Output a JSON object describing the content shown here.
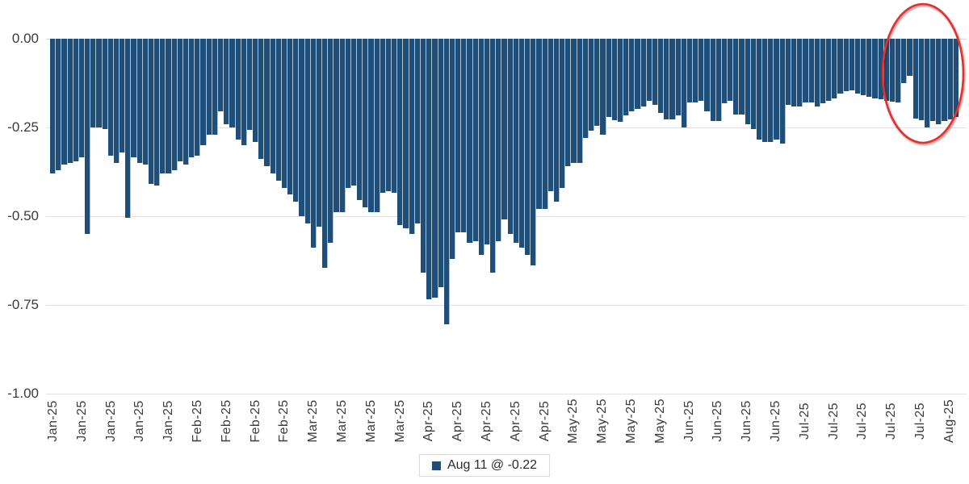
{
  "legend": {
    "label": "Aug 11 @ -0.22",
    "marker_color": "#1F4E79"
  },
  "annotation": {
    "shape": "ellipse",
    "stroke_color": "#E0312E",
    "highlights": "last bars of series"
  },
  "chart_data": {
    "type": "bar",
    "title": "",
    "xlabel": "",
    "ylabel": "",
    "ylim": [
      -1.0,
      0.0
    ],
    "grid": "horizontal",
    "legend_position": "bottom-center",
    "bar_color": "#1F4E79",
    "y_ticks": [
      {
        "label": "0.00",
        "value": 0.0
      },
      {
        "label": "-0.25",
        "value": -0.25
      },
      {
        "label": "-0.50",
        "value": -0.5
      },
      {
        "label": "-0.75",
        "value": -0.75
      },
      {
        "label": "-1.00",
        "value": -1.0
      }
    ],
    "x_tick_labels": [
      "Jan-25",
      "Jan-25",
      "Jan-25",
      "Jan-25",
      "Jan-25",
      "Feb-25",
      "Feb-25",
      "Feb-25",
      "Feb-25",
      "Mar-25",
      "Mar-25",
      "Mar-25",
      "Mar-25",
      "Apr-25",
      "Apr-25",
      "Apr-25",
      "Apr-25",
      "Apr-25",
      "May-25",
      "May-25",
      "May-25",
      "May-25",
      "Jun-25",
      "Jun-25",
      "Jun-25",
      "Jun-25",
      "Jul-25",
      "Jul-25",
      "Jul-25",
      "Jul-25",
      "Jul-25",
      "Aug-25"
    ],
    "x_tick_every_n_bars": 5,
    "series": [
      {
        "name": "Aug 11 @ -0.22",
        "color": "#1F4E79",
        "values": [
          -0.38,
          -0.37,
          -0.355,
          -0.35,
          -0.345,
          -0.335,
          -0.55,
          -0.25,
          -0.25,
          -0.255,
          -0.33,
          -0.35,
          -0.32,
          -0.505,
          -0.335,
          -0.35,
          -0.355,
          -0.41,
          -0.415,
          -0.38,
          -0.38,
          -0.37,
          -0.345,
          -0.355,
          -0.335,
          -0.33,
          -0.3,
          -0.27,
          -0.27,
          -0.205,
          -0.24,
          -0.25,
          -0.285,
          -0.3,
          -0.258,
          -0.29,
          -0.34,
          -0.36,
          -0.38,
          -0.4,
          -0.42,
          -0.44,
          -0.46,
          -0.5,
          -0.52,
          -0.59,
          -0.53,
          -0.645,
          -0.575,
          -0.49,
          -0.49,
          -0.42,
          -0.415,
          -0.455,
          -0.475,
          -0.49,
          -0.49,
          -0.435,
          -0.43,
          -0.435,
          -0.525,
          -0.535,
          -0.55,
          -0.52,
          -0.66,
          -0.735,
          -0.73,
          -0.7,
          -0.805,
          -0.62,
          -0.545,
          -0.545,
          -0.575,
          -0.57,
          -0.61,
          -0.58,
          -0.66,
          -0.57,
          -0.51,
          -0.55,
          -0.575,
          -0.59,
          -0.61,
          -0.64,
          -0.48,
          -0.48,
          -0.43,
          -0.46,
          -0.42,
          -0.36,
          -0.35,
          -0.35,
          -0.28,
          -0.26,
          -0.245,
          -0.27,
          -0.22,
          -0.23,
          -0.235,
          -0.215,
          -0.205,
          -0.198,
          -0.19,
          -0.175,
          -0.186,
          -0.21,
          -0.228,
          -0.228,
          -0.217,
          -0.25,
          -0.18,
          -0.18,
          -0.175,
          -0.205,
          -0.232,
          -0.232,
          -0.182,
          -0.175,
          -0.213,
          -0.213,
          -0.24,
          -0.255,
          -0.285,
          -0.29,
          -0.29,
          -0.285,
          -0.295,
          -0.186,
          -0.19,
          -0.19,
          -0.18,
          -0.18,
          -0.19,
          -0.183,
          -0.175,
          -0.168,
          -0.155,
          -0.148,
          -0.145,
          -0.155,
          -0.159,
          -0.164,
          -0.168,
          -0.171,
          -0.175,
          -0.178,
          -0.18,
          -0.125,
          -0.105,
          -0.225,
          -0.23,
          -0.25,
          -0.232,
          -0.24,
          -0.232,
          -0.227,
          -0.22
        ]
      }
    ]
  }
}
